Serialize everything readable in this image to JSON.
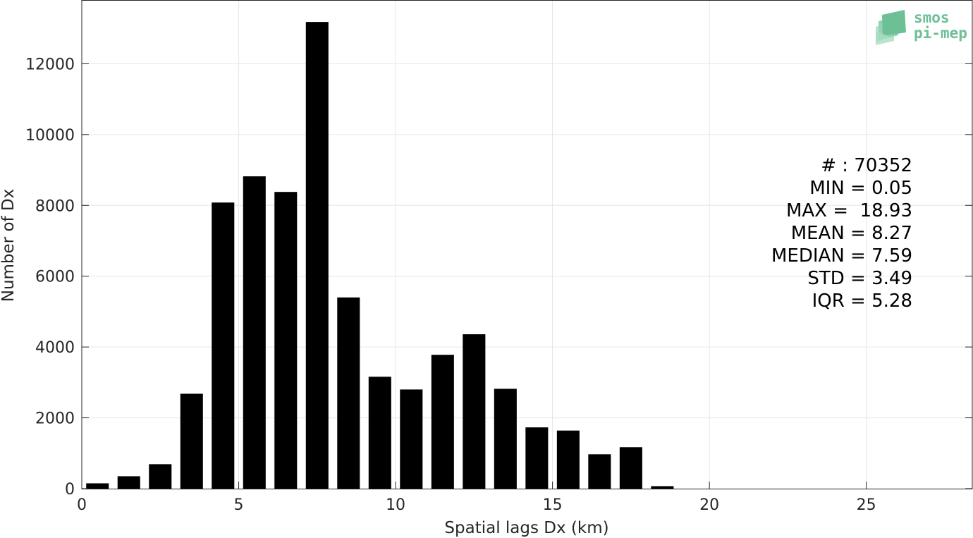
{
  "chart_data": {
    "type": "bar",
    "xlabel": "Spatial lags Dx (km)",
    "ylabel": "Number of Dx",
    "xlim": [
      0,
      28.4
    ],
    "ylim": [
      0,
      13800
    ],
    "xticks": [
      0,
      5,
      10,
      15,
      20,
      25
    ],
    "yticks": [
      0,
      2000,
      4000,
      6000,
      8000,
      10000,
      12000
    ],
    "grid": true,
    "bar_color": "#000000",
    "bin_width": 1,
    "x": [
      0.5,
      1.5,
      2.5,
      3.5,
      4.5,
      5.5,
      6.5,
      7.5,
      8.5,
      9.5,
      10.5,
      11.5,
      12.5,
      13.5,
      14.5,
      15.5,
      16.5,
      17.5,
      18.5,
      19.5,
      20.5,
      21.5,
      22.5,
      23.5,
      24.5,
      25.5,
      26.5,
      27.5
    ],
    "values": [
      150,
      350,
      690,
      2680,
      8080,
      8820,
      8380,
      13180,
      5400,
      3160,
      2800,
      3780,
      4360,
      2820,
      1730,
      1640,
      970,
      1170,
      70,
      0,
      0,
      0,
      0,
      0,
      0,
      0,
      0,
      0
    ]
  },
  "stats": [
    "# : 70352",
    "MIN = 0.05",
    "MAX =  18.93",
    "MEAN = 8.27",
    "MEDIAN = 7.59",
    "STD = 3.49",
    "IQR = 5.28"
  ],
  "logo": {
    "line1": "smos",
    "line2": "pi-mep",
    "color": "#6dbf96"
  },
  "colors": {
    "axis": "#262626",
    "grid": "#e6e6e6"
  }
}
